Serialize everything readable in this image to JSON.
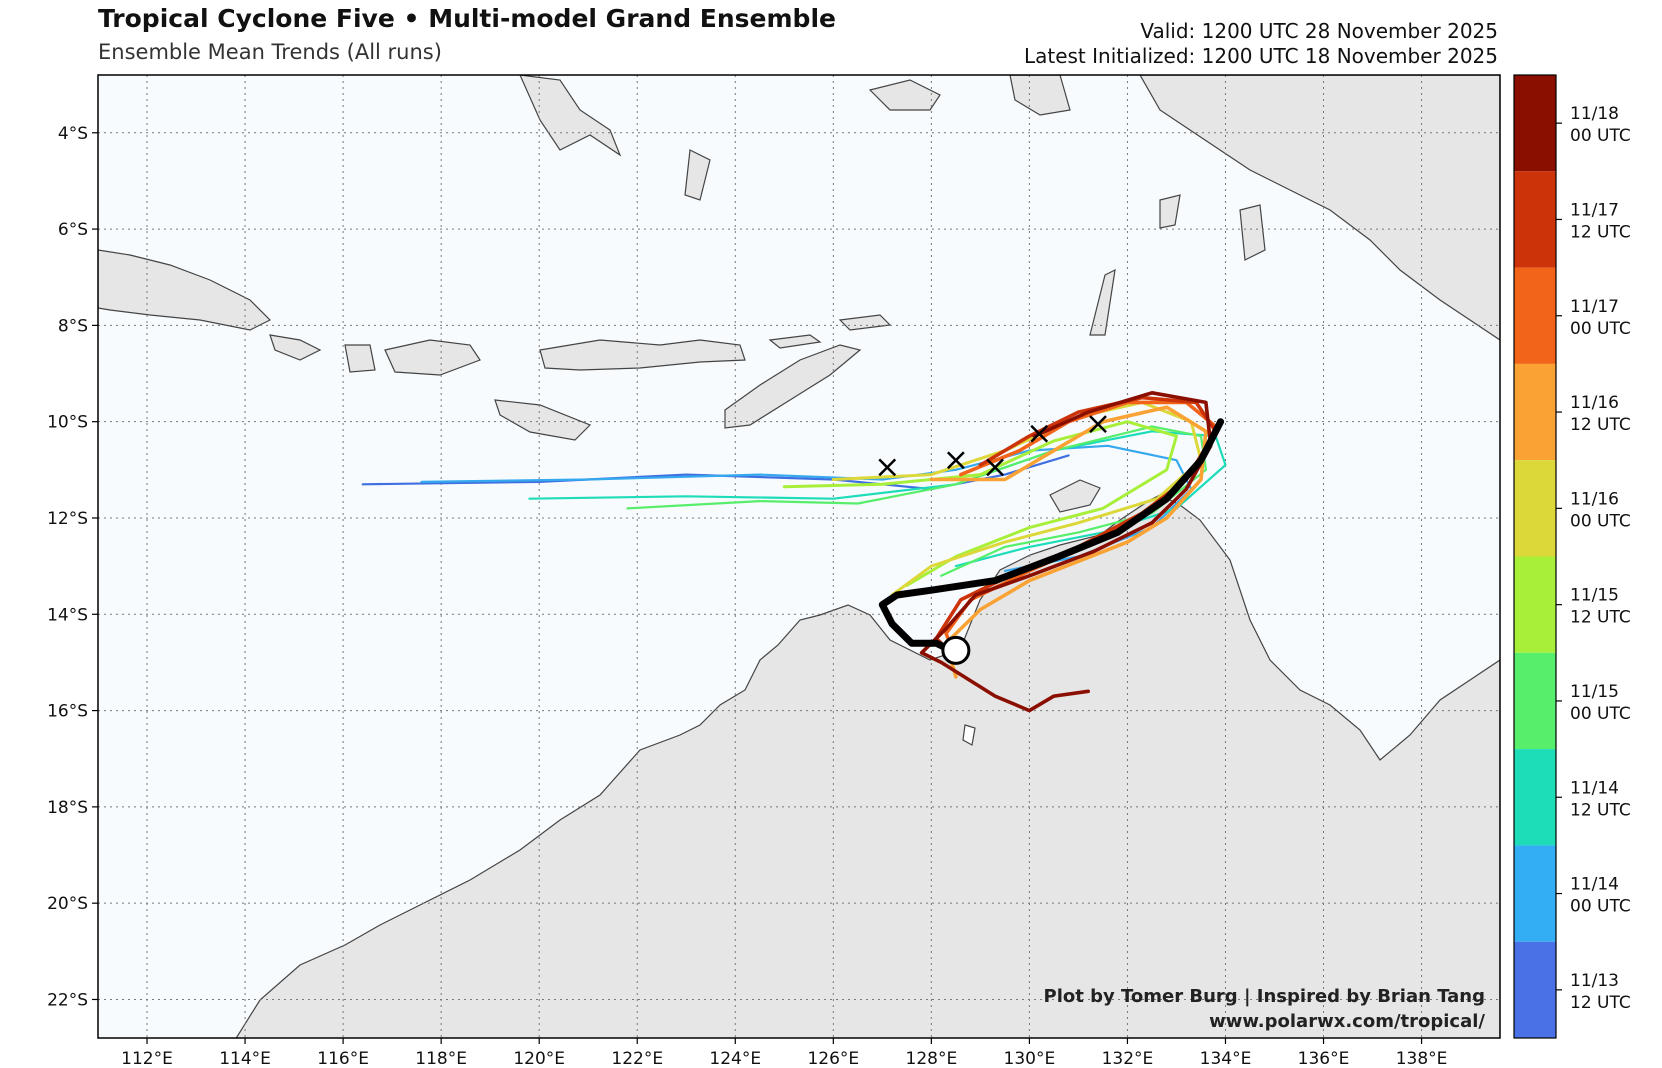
{
  "header": {
    "title": "Tropical Cyclone Five • Multi-model Grand Ensemble",
    "subtitle": "Ensemble Mean Trends (All runs)",
    "valid": "Valid: 1200 UTC 28 November 2025",
    "initialized": "Latest Initialized: 1200 UTC 18 November 2025"
  },
  "map": {
    "lat_labels": [
      "4°S",
      "6°S",
      "8°S",
      "10°S",
      "12°S",
      "14°S",
      "16°S",
      "18°S",
      "20°S",
      "22°S"
    ],
    "lat_values": [
      -4,
      -6,
      -8,
      -10,
      -12,
      -14,
      -16,
      -18,
      -20,
      -22
    ],
    "lon_labels": [
      "112°E",
      "114°E",
      "116°E",
      "118°E",
      "120°E",
      "122°E",
      "124°E",
      "126°E",
      "128°E",
      "130°E",
      "132°E",
      "134°E",
      "136°E",
      "138°E"
    ],
    "lon_values": [
      112,
      114,
      116,
      118,
      120,
      122,
      124,
      126,
      128,
      130,
      132,
      134,
      136,
      138
    ],
    "extent": {
      "lon_min": 111,
      "lon_max": 139.6,
      "lat_min": -22.8,
      "lat_max": -2.8
    },
    "ocean_color": "#f7fbfe",
    "land_color": "#e6e6e6"
  },
  "colorbar": {
    "labels": [
      [
        "11/18",
        "00 UTC"
      ],
      [
        "11/17",
        "12 UTC"
      ],
      [
        "11/17",
        "00 UTC"
      ],
      [
        "11/16",
        "12 UTC"
      ],
      [
        "11/16",
        "00 UTC"
      ],
      [
        "11/15",
        "12 UTC"
      ],
      [
        "11/15",
        "00 UTC"
      ],
      [
        "11/14",
        "12 UTC"
      ],
      [
        "11/14",
        "00 UTC"
      ],
      [
        "11/13",
        "12 UTC"
      ]
    ],
    "colors": [
      "#8b0f00",
      "#cc3308",
      "#f2641a",
      "#faa334",
      "#dcd83a",
      "#a8ef3a",
      "#56ee6a",
      "#1ddcb8",
      "#33aef5",
      "#4a72e6"
    ]
  },
  "tracks": [
    {
      "run": "11/13 12 UTC",
      "color": "#3f6fe0",
      "points": [
        [
          116.4,
          -11.3
        ],
        [
          120,
          -11.25
        ],
        [
          123,
          -11.1
        ],
        [
          126,
          -11.2
        ],
        [
          128,
          -11.4
        ],
        [
          129.5,
          -11.1
        ],
        [
          130.8,
          -10.7
        ]
      ]
    },
    {
      "run": "11/14 00 UTC",
      "color": "#35a8ee",
      "points": [
        [
          117.6,
          -11.25
        ],
        [
          121,
          -11.2
        ],
        [
          124.5,
          -11.1
        ],
        [
          127,
          -11.2
        ],
        [
          128.5,
          -11.0
        ],
        [
          130,
          -10.6
        ],
        [
          131.6,
          -10.5
        ],
        [
          133,
          -10.8
        ],
        [
          133.3,
          -11.4
        ],
        [
          132.5,
          -12.2
        ],
        [
          131,
          -12.8
        ],
        [
          129.5,
          -13.1
        ]
      ]
    },
    {
      "run": "11/14 12 UTC",
      "color": "#1ddcb8",
      "points": [
        [
          119.8,
          -11.6
        ],
        [
          123,
          -11.55
        ],
        [
          126,
          -11.6
        ],
        [
          128.5,
          -11.3
        ],
        [
          130.5,
          -10.6
        ],
        [
          132.5,
          -10.2
        ],
        [
          133.8,
          -10.3
        ],
        [
          134.0,
          -10.9
        ],
        [
          133,
          -11.8
        ],
        [
          131.5,
          -12.3
        ],
        [
          130,
          -12.6
        ],
        [
          128.5,
          -13.0
        ]
      ]
    },
    {
      "run": "11/15 00 UTC",
      "color": "#56ee6a",
      "points": [
        [
          121.8,
          -11.8
        ],
        [
          124.5,
          -11.65
        ],
        [
          126.5,
          -11.7
        ],
        [
          128.5,
          -11.3
        ],
        [
          130.5,
          -10.6
        ],
        [
          132.5,
          -10.1
        ],
        [
          133.5,
          -10.3
        ],
        [
          133.6,
          -11.0
        ],
        [
          132.5,
          -11.9
        ],
        [
          131,
          -12.3
        ],
        [
          129.5,
          -12.6
        ],
        [
          128.2,
          -13.2
        ]
      ]
    },
    {
      "run": "11/15 12 UTC",
      "color": "#a8ef3a",
      "points": [
        [
          125.0,
          -11.35
        ],
        [
          127,
          -11.3
        ],
        [
          129,
          -11.1
        ],
        [
          130.5,
          -10.4
        ],
        [
          132,
          -10.0
        ],
        [
          133.0,
          -10.3
        ],
        [
          132.8,
          -11.0
        ],
        [
          131.5,
          -11.8
        ],
        [
          130,
          -12.2
        ],
        [
          128.5,
          -12.8
        ],
        [
          127.5,
          -13.4
        ]
      ]
    },
    {
      "run": "11/16 00 UTC",
      "color": "#dcd83a",
      "points": [
        [
          126.0,
          -11.2
        ],
        [
          128,
          -11.1
        ],
        [
          129.5,
          -10.6
        ],
        [
          131,
          -9.9
        ],
        [
          132.3,
          -9.6
        ],
        [
          133.3,
          -10.0
        ],
        [
          133.5,
          -10.8
        ],
        [
          132.6,
          -11.6
        ],
        [
          131,
          -12.1
        ],
        [
          129.5,
          -12.5
        ],
        [
          128,
          -13.0
        ],
        [
          127.2,
          -13.6
        ]
      ]
    },
    {
      "run": "11/16 12 UTC",
      "color": "#faa334",
      "points": [
        [
          128.0,
          -11.2
        ],
        [
          129.5,
          -11.2
        ],
        [
          130.5,
          -10.6
        ],
        [
          131.5,
          -10.0
        ],
        [
          132.8,
          -9.7
        ],
        [
          133.6,
          -10.2
        ],
        [
          133.5,
          -11.2
        ],
        [
          132.8,
          -12.0
        ],
        [
          132.0,
          -12.5
        ],
        [
          131,
          -12.9
        ],
        [
          130,
          -13.3
        ],
        [
          129,
          -13.9
        ],
        [
          128.3,
          -14.6
        ],
        [
          128.5,
          -15.3
        ]
      ]
    },
    {
      "run": "11/17 00 UTC",
      "color": "#f2641a",
      "points": [
        [
          128.6,
          -11.1
        ],
        [
          129.8,
          -10.6
        ],
        [
          130.8,
          -10.0
        ],
        [
          132.0,
          -9.6
        ],
        [
          133.2,
          -9.6
        ],
        [
          133.8,
          -10.1
        ],
        [
          133.4,
          -11.0
        ],
        [
          132.5,
          -11.8
        ],
        [
          131.3,
          -12.5
        ],
        [
          130,
          -13.1
        ],
        [
          128.8,
          -13.7
        ],
        [
          128.3,
          -14.4
        ],
        [
          128.5,
          -14.9
        ]
      ]
    },
    {
      "run": "11/17 12 UTC",
      "color": "#cc3308",
      "points": [
        [
          129.0,
          -10.9
        ],
        [
          130,
          -10.3
        ],
        [
          131,
          -9.8
        ],
        [
          132.3,
          -9.5
        ],
        [
          133.4,
          -9.6
        ],
        [
          133.8,
          -10.2
        ],
        [
          133.2,
          -11.2
        ],
        [
          132.3,
          -11.9
        ],
        [
          131,
          -12.6
        ],
        [
          129.8,
          -13.1
        ],
        [
          128.6,
          -13.7
        ],
        [
          128.1,
          -14.5
        ],
        [
          128.4,
          -14.8
        ]
      ]
    },
    {
      "run": "11/18 00 UTC",
      "color": "#8b0f00",
      "points": [
        [
          130.1,
          -10.3
        ],
        [
          131.2,
          -9.8
        ],
        [
          132.5,
          -9.4
        ],
        [
          133.6,
          -9.6
        ],
        [
          133.7,
          -10.5
        ],
        [
          133.2,
          -11.4
        ],
        [
          132.5,
          -12.1
        ],
        [
          131.3,
          -12.7
        ],
        [
          130,
          -13.2
        ],
        [
          128.9,
          -13.6
        ],
        [
          128.3,
          -14.3
        ],
        [
          127.8,
          -14.8
        ],
        [
          128.2,
          -15.0
        ],
        [
          129.3,
          -15.7
        ],
        [
          130,
          -16.0
        ],
        [
          130.5,
          -15.7
        ],
        [
          131.2,
          -15.6
        ]
      ]
    },
    {
      "run": "Mean",
      "color": "#000000",
      "points": [
        [
          133.9,
          -10.0
        ],
        [
          133.5,
          -10.8
        ],
        [
          132.8,
          -11.6
        ],
        [
          131.8,
          -12.3
        ],
        [
          130.6,
          -12.8
        ],
        [
          129.3,
          -13.3
        ],
        [
          128.0,
          -13.5
        ],
        [
          127.3,
          -13.6
        ],
        [
          127.0,
          -13.8
        ],
        [
          127.2,
          -14.2
        ],
        [
          127.6,
          -14.6
        ],
        [
          128.1,
          -14.6
        ],
        [
          128.5,
          -14.8
        ]
      ]
    }
  ],
  "markers": {
    "x_marks": [
      [
        127.1,
        -10.95
      ],
      [
        128.5,
        -10.8
      ],
      [
        129.3,
        -10.95
      ],
      [
        130.2,
        -10.25
      ],
      [
        131.4,
        -10.05
      ]
    ],
    "circle": [
      128.5,
      -14.75
    ]
  },
  "credit": {
    "line1": "Plot by Tomer Burg | Inspired by Brian Tang",
    "line2": "www.polarwx.com/tropical/"
  }
}
